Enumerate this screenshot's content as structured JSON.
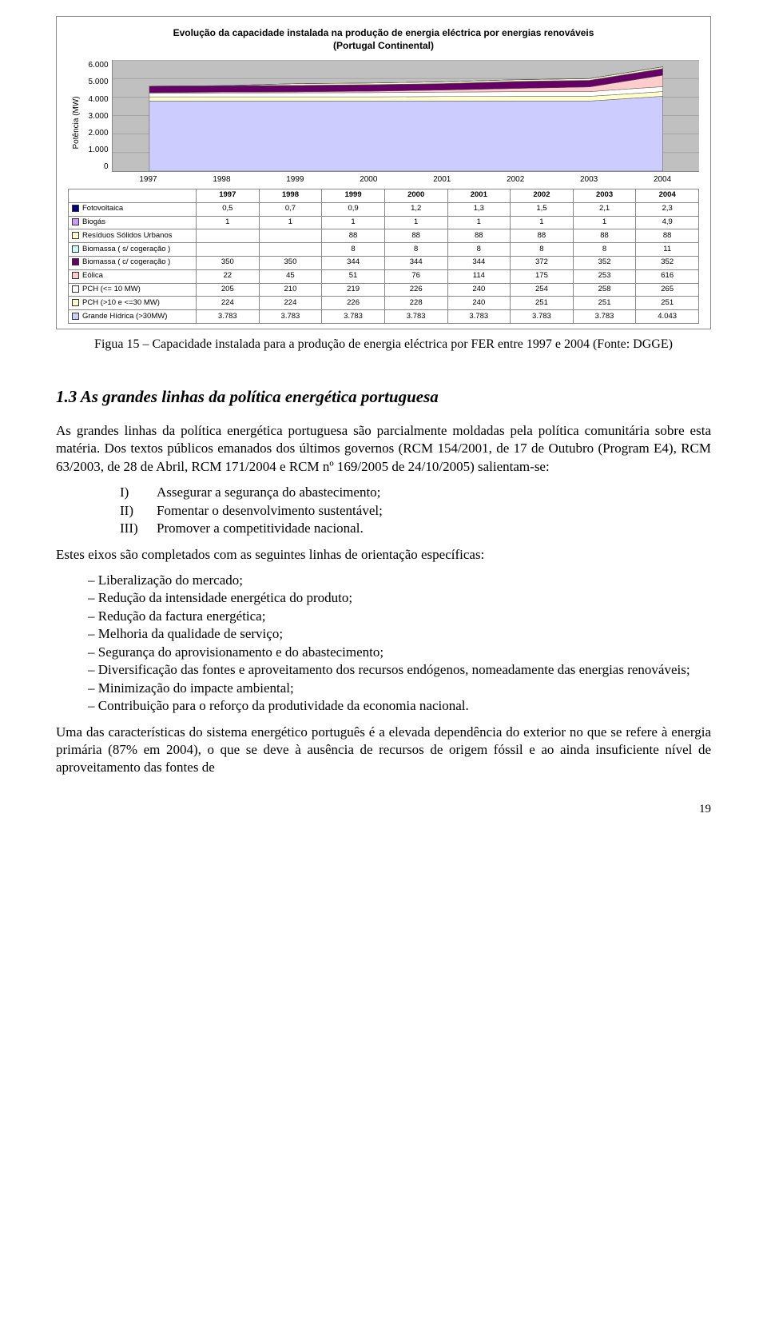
{
  "chart": {
    "type": "stacked-area",
    "title_line1": "Evolução da capacidade instalada na produção de energia eléctrica por energias renováveis",
    "title_line2": "(Portugal Continental)",
    "yaxis_label": "Potência (MW)",
    "ylim": [
      0,
      6000
    ],
    "yticks": [
      "6.000",
      "5.000",
      "4.000",
      "3.000",
      "2.000",
      "1.000",
      "0"
    ],
    "years": [
      "1997",
      "1998",
      "1999",
      "2000",
      "2001",
      "2002",
      "2003",
      "2004"
    ],
    "background_color": "#c0c0c0",
    "grid_color": "#888888",
    "title_fontsize": 12,
    "label_fontsize": 10,
    "series": [
      {
        "label": "Fotovoltaica",
        "marker_color": "#000080",
        "values": [
          0.5,
          0.7,
          0.9,
          1.2,
          1.3,
          1.5,
          2.1,
          2.3
        ]
      },
      {
        "label": "Biogás",
        "marker_color": "#cc99ff",
        "values": [
          1,
          1,
          1,
          1,
          1,
          1,
          1,
          4.9
        ]
      },
      {
        "label": "Resíduos Sólidos Urbanos",
        "marker_color": "#ffffcc",
        "values": [
          null,
          null,
          88,
          88,
          88,
          88,
          88,
          88
        ]
      },
      {
        "label": "Biomassa  ( s/ cogeração )",
        "marker_color": "#ccffff",
        "values": [
          null,
          null,
          8,
          8,
          8,
          8,
          8,
          11
        ]
      },
      {
        "label": "Biomassa  ( c/ cogeração )",
        "marker_color": "#660066",
        "values": [
          350,
          350,
          344,
          344,
          344,
          372,
          352,
          352
        ]
      },
      {
        "label": "Eólica",
        "marker_color": "#ffcccc",
        "values": [
          22,
          45,
          51,
          76,
          114,
          175,
          253,
          616
        ]
      },
      {
        "label": "PCH (<= 10 MW)",
        "marker_color": "#ffffff",
        "values": [
          205,
          210,
          219,
          226,
          240,
          254,
          258,
          265
        ]
      },
      {
        "label": "PCH (>10 e <=30 MW)",
        "marker_color": "#ffffcc",
        "values": [
          224,
          224,
          226,
          228,
          240,
          251,
          251,
          251
        ]
      },
      {
        "label": "Grande Hídrica   (>30MW)",
        "marker_color": "#ccccff",
        "values": [
          3783,
          3783,
          3783,
          3783,
          3783,
          3783,
          3783,
          4043
        ]
      }
    ],
    "series_display": [
      {
        "label": "Fotovoltaica",
        "values": [
          "0,5",
          "0,7",
          "0,9",
          "1,2",
          "1,3",
          "1,5",
          "2,1",
          "2,3"
        ]
      },
      {
        "label": "Biogás",
        "values": [
          "1",
          "1",
          "1",
          "1",
          "1",
          "1",
          "1",
          "4,9"
        ]
      },
      {
        "label": "Resíduos Sólidos Urbanos",
        "values": [
          "",
          "",
          "88",
          "88",
          "88",
          "88",
          "88",
          "88"
        ]
      },
      {
        "label": "Biomassa  ( s/ cogeração )",
        "values": [
          "",
          "",
          "8",
          "8",
          "8",
          "8",
          "8",
          "11"
        ]
      },
      {
        "label": "Biomassa  ( c/ cogeração )",
        "values": [
          "350",
          "350",
          "344",
          "344",
          "344",
          "372",
          "352",
          "352"
        ]
      },
      {
        "label": "Eólica",
        "values": [
          "22",
          "45",
          "51",
          "76",
          "114",
          "175",
          "253",
          "616"
        ]
      },
      {
        "label": "PCH (<= 10 MW)",
        "values": [
          "205",
          "210",
          "219",
          "226",
          "240",
          "254",
          "258",
          "265"
        ]
      },
      {
        "label": "PCH (>10 e <=30 MW)",
        "values": [
          "224",
          "224",
          "226",
          "228",
          "240",
          "251",
          "251",
          "251"
        ]
      },
      {
        "label": "Grande Hídrica   (>30MW)",
        "values": [
          "3.783",
          "3.783",
          "3.783",
          "3.783",
          "3.783",
          "3.783",
          "3.783",
          "4.043"
        ]
      }
    ]
  },
  "figure_caption": "Figua 15 – Capacidade instalada para a produção de energia eléctrica por FER entre 1997 e 2004 (Fonte: DGGE)",
  "section_heading": "1.3 As grandes linhas da política energética portuguesa",
  "para1": "As grandes linhas da política energética portuguesa são parcialmente moldadas pela política comunitária sobre esta matéria. Dos textos públicos emanados dos últimos governos (RCM 154/2001, de 17 de Outubro (Program E4),  RCM 63/2003, de 28 de Abril, RCM 171/2004 e  RCM nº 169/2005 de  24/10/2005) salientam-se:",
  "roman_items": [
    {
      "num": "I)",
      "text": "Assegurar a segurança do abastecimento;"
    },
    {
      "num": "II)",
      "text": "Fomentar o desenvolvimento sustentável;"
    },
    {
      "num": "III)",
      "text": "Promover a competitividade nacional."
    }
  ],
  "para2": "Estes eixos são completados com as seguintes linhas de orientação específicas:",
  "bullets": [
    "Liberalização do mercado;",
    "Redução da intensidade energética do produto;",
    "Redução da factura energética;",
    "Melhoria da qualidade de serviço;",
    "Segurança do aprovisionamento e do abastecimento;",
    "Diversificação das fontes e aproveitamento dos recursos endógenos, nomeadamente das energias renováveis;",
    "Minimização do impacte ambiental;",
    "Contribuição para o reforço da produtividade da economia nacional."
  ],
  "para3": "Uma das características do sistema energético português é a elevada dependência do exterior no que se refere à energia primária (87% em 2004), o que se deve à ausência de recursos de origem fóssil e ao ainda insuficiente nível de aproveitamento das fontes de",
  "page_number": "19"
}
